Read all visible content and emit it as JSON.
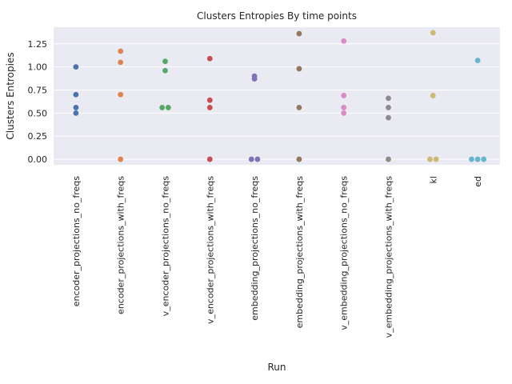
{
  "chart_data": {
    "type": "scatter",
    "title": "Clusters Entropies By time points",
    "xlabel": "Run",
    "ylabel": "Clusters Entropies",
    "ylim": [
      -0.06,
      1.43
    ],
    "yticks": [
      0.0,
      0.25,
      0.5,
      0.75,
      1.0,
      1.25
    ],
    "ytick_labels": [
      "0.00",
      "0.25",
      "0.50",
      "0.75",
      "1.00",
      "1.25"
    ],
    "grid": true,
    "categories": [
      "encoder_projections_no_freqs",
      "encoder_projections_with_freqs",
      "v_encoder_projections_no_freqs",
      "v_encoder_projections_with_freqs",
      "embedding_projections_no_freqs",
      "embedding_projections_with_freqs",
      "v_embedding_projections_no_freqs",
      "v_embedding_projections_with_freqs",
      "kl",
      "ed"
    ],
    "colors": [
      "#4c72b0",
      "#dd8452",
      "#55a868",
      "#c44e52",
      "#8172b3",
      "#937860",
      "#da8bc3",
      "#8c8c8c",
      "#ccb974",
      "#64b5cd"
    ],
    "series": [
      {
        "values": [
          1.0,
          0.7,
          0.56,
          0.5
        ]
      },
      {
        "values": [
          1.17,
          1.05,
          0.7,
          0.0
        ]
      },
      {
        "values": [
          1.06,
          0.96,
          0.56,
          0.56
        ]
      },
      {
        "values": [
          1.09,
          0.64,
          0.56,
          0.0
        ]
      },
      {
        "values": [
          0.9,
          0.87,
          0.0,
          0.0
        ]
      },
      {
        "values": [
          1.36,
          0.98,
          0.56,
          0.0
        ]
      },
      {
        "values": [
          1.28,
          0.69,
          0.56,
          0.5
        ]
      },
      {
        "values": [
          0.66,
          0.56,
          0.45,
          0.0
        ]
      },
      {
        "values": [
          1.37,
          0.69,
          0.0,
          0.0
        ]
      },
      {
        "values": [
          1.07,
          0.0,
          0.0,
          0.0
        ]
      }
    ]
  }
}
